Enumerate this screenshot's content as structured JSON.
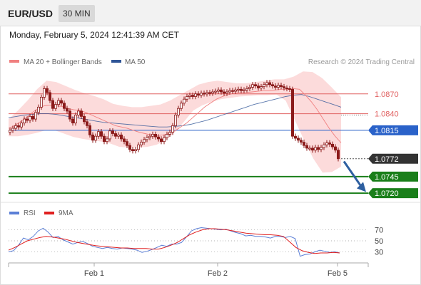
{
  "header": {
    "symbol": "EUR/USD",
    "timeframe": "30 MIN",
    "timestamp": "Monday, February 5, 2024 12:41:39 AM CET"
  },
  "legend": {
    "ma20_label": "MA 20 + Bollinger Bands",
    "ma50_label": "MA 50",
    "credit": "Research © 2024 Trading Central",
    "rsi_label": "RSI",
    "rsi_ma_label": "9MA"
  },
  "colors": {
    "ma20": "#f08080",
    "ma50": "#2f5597",
    "bb_fill": "#fbd5d5",
    "candle": "#8b1a1a",
    "resistance": "#e06060",
    "pivot": "#2a62c9",
    "support": "#1a7f1a",
    "arrow": "#2e5fa0",
    "current_tag": "#333333",
    "rsi_line": "#5b7fd6",
    "rsi_ma": "#e02020"
  },
  "chart_data": [
    {
      "type": "candlestick",
      "title": "EUR/USD",
      "x_ticks": [
        "Feb 1",
        "Feb 2",
        "Feb 5"
      ],
      "ylim": [
        1.0705,
        1.0915
      ],
      "levels": [
        {
          "value": 1.087,
          "label": "1.0870",
          "role": "resistance"
        },
        {
          "value": 1.084,
          "label": "1.0840",
          "role": "resistance"
        },
        {
          "value": 1.0815,
          "label": "1.0815",
          "role": "pivot"
        },
        {
          "value": 1.0772,
          "label": "1.0772",
          "role": "current"
        },
        {
          "value": 1.0745,
          "label": "1.0745",
          "role": "support"
        },
        {
          "value": 1.072,
          "label": "1.0720",
          "role": "support"
        }
      ],
      "close": [
        1.0815,
        1.0818,
        1.0822,
        1.082,
        1.0826,
        1.0832,
        1.083,
        1.0836,
        1.0832,
        1.0842,
        1.085,
        1.0865,
        1.0878,
        1.0872,
        1.086,
        1.0848,
        1.0854,
        1.086,
        1.0856,
        1.0848,
        1.0844,
        1.0832,
        1.0826,
        1.0838,
        1.0844,
        1.0836,
        1.0828,
        1.0822,
        1.0808,
        1.08,
        1.0806,
        1.0813,
        1.0806,
        1.0798,
        1.0802,
        1.0814,
        1.081,
        1.0806,
        1.0808,
        1.0802,
        1.0798,
        1.0792,
        1.0786,
        1.0784,
        1.0786,
        1.0793,
        1.0797,
        1.0801,
        1.0804,
        1.0806,
        1.0809,
        1.0805,
        1.0802,
        1.0798,
        1.0804,
        1.0809,
        1.0812,
        1.0822,
        1.0838,
        1.0848,
        1.0856,
        1.0862,
        1.0866,
        1.0868,
        1.0866,
        1.087,
        1.0868,
        1.0871,
        1.087,
        1.0872,
        1.0871,
        1.0873,
        1.0874,
        1.0876,
        1.0873,
        1.0871,
        1.0873,
        1.0875,
        1.0874,
        1.0876,
        1.0877,
        1.0875,
        1.0876,
        1.0878,
        1.088,
        1.0884,
        1.0882,
        1.0879,
        1.0881,
        1.0884,
        1.0887,
        1.0884,
        1.0882,
        1.088,
        1.0883,
        1.0881,
        1.0879,
        1.0878,
        1.0877,
        1.0806,
        1.0803,
        1.08,
        1.0797,
        1.0792,
        1.0788,
        1.0788,
        1.0785,
        1.0789,
        1.0786,
        1.0789,
        1.0793,
        1.0796,
        1.0794,
        1.079,
        1.0785,
        1.0772
      ],
      "ma20_bollinger_mid": [
        1.0818,
        1.0822,
        1.0828,
        1.0834,
        1.0842,
        1.0848,
        1.0852,
        1.0853,
        1.0852,
        1.0851,
        1.0848,
        1.0846,
        1.0845,
        1.0842,
        1.0838,
        1.0834,
        1.083,
        1.0826,
        1.0822,
        1.082,
        1.0818,
        1.0815,
        1.0812,
        1.081,
        1.0808,
        1.0807,
        1.0808,
        1.081,
        1.0814,
        1.082,
        1.0826,
        1.0834,
        1.0842,
        1.085,
        1.0856,
        1.0862,
        1.0866,
        1.0869,
        1.0871,
        1.0872,
        1.0872,
        1.0873,
        1.0874,
        1.0875,
        1.0875,
        1.0876,
        1.0877,
        1.0877,
        1.0878,
        1.0877,
        1.0868,
        1.0858,
        1.0846,
        1.0832,
        1.0818,
        1.0806,
        1.0796
      ],
      "ma50": [
        1.0834,
        1.0836,
        1.0838,
        1.0839,
        1.084,
        1.084,
        1.0839,
        1.0837,
        1.0835,
        1.0833,
        1.0831,
        1.0829,
        1.0827,
        1.0826,
        1.0825,
        1.0824,
        1.0823,
        1.0822,
        1.0821,
        1.082,
        1.082,
        1.0821,
        1.0822,
        1.0824,
        1.0827,
        1.083,
        1.0834,
        1.0838,
        1.0842,
        1.0846,
        1.085,
        1.0854,
        1.0857,
        1.086,
        1.0863,
        1.0866,
        1.0868,
        1.0869,
        1.0866,
        1.0862,
        1.0858,
        1.0854,
        1.085
      ],
      "bollinger_upper": [
        1.0832,
        1.0845,
        1.086,
        1.0877,
        1.089,
        1.0888,
        1.0882,
        1.0876,
        1.0871,
        1.0867,
        1.0862,
        1.0855,
        1.0852,
        1.085,
        1.085,
        1.0852,
        1.0854,
        1.086,
        1.0868,
        1.0876,
        1.0884,
        1.0888,
        1.089,
        1.0888,
        1.0886,
        1.0886,
        1.0888,
        1.089,
        1.0892,
        1.0892,
        1.0896,
        1.0904,
        1.0903,
        1.0894,
        1.088,
        1.0865
      ],
      "bollinger_lower": [
        1.0806,
        1.0806,
        1.0808,
        1.0811,
        1.0815,
        1.0815,
        1.081,
        1.0805,
        1.0802,
        1.08,
        1.0798,
        1.0795,
        1.079,
        1.0789,
        1.0789,
        1.079,
        1.0793,
        1.08,
        1.0812,
        1.0828,
        1.0845,
        1.0853,
        1.0858,
        1.0862,
        1.0864,
        1.0866,
        1.0867,
        1.0868,
        1.0868,
        1.0869,
        1.086,
        1.083,
        1.08,
        1.0772,
        1.0751,
        1.0752,
        1.076
      ],
      "forecast_arrow": {
        "from": 1.0768,
        "to": 1.0725
      }
    },
    {
      "type": "line",
      "title": "RSI",
      "series_names": [
        "RSI",
        "9MA"
      ],
      "y_ticks": [
        70,
        50,
        30
      ],
      "ylim": [
        15,
        85
      ],
      "rsi": [
        30,
        32,
        42,
        55,
        52,
        58,
        68,
        73,
        66,
        56,
        58,
        52,
        48,
        44,
        47,
        49,
        45,
        40,
        38,
        36,
        38,
        36,
        35,
        37,
        36,
        35,
        33,
        29,
        31,
        34,
        38,
        42,
        40,
        44,
        44,
        47,
        57,
        68,
        72,
        74,
        73,
        72,
        71,
        70,
        71,
        68,
        65,
        63,
        59,
        60,
        58,
        58,
        57,
        55,
        58,
        58,
        56,
        58,
        54,
        22,
        25,
        26,
        30,
        33,
        31,
        29,
        30,
        28
      ],
      "rsi_ma": [
        33,
        38,
        44,
        50,
        53,
        56,
        58,
        57,
        55,
        53,
        50,
        47,
        45,
        43,
        41,
        40,
        39,
        38,
        37,
        37,
        36,
        36,
        36,
        35,
        35,
        38,
        42,
        47,
        54,
        61,
        66,
        70,
        72,
        72,
        71,
        70,
        68,
        66,
        64,
        63,
        62,
        61,
        61,
        60,
        58,
        48,
        38,
        32,
        29,
        27,
        28,
        28,
        29,
        28
      ]
    }
  ]
}
